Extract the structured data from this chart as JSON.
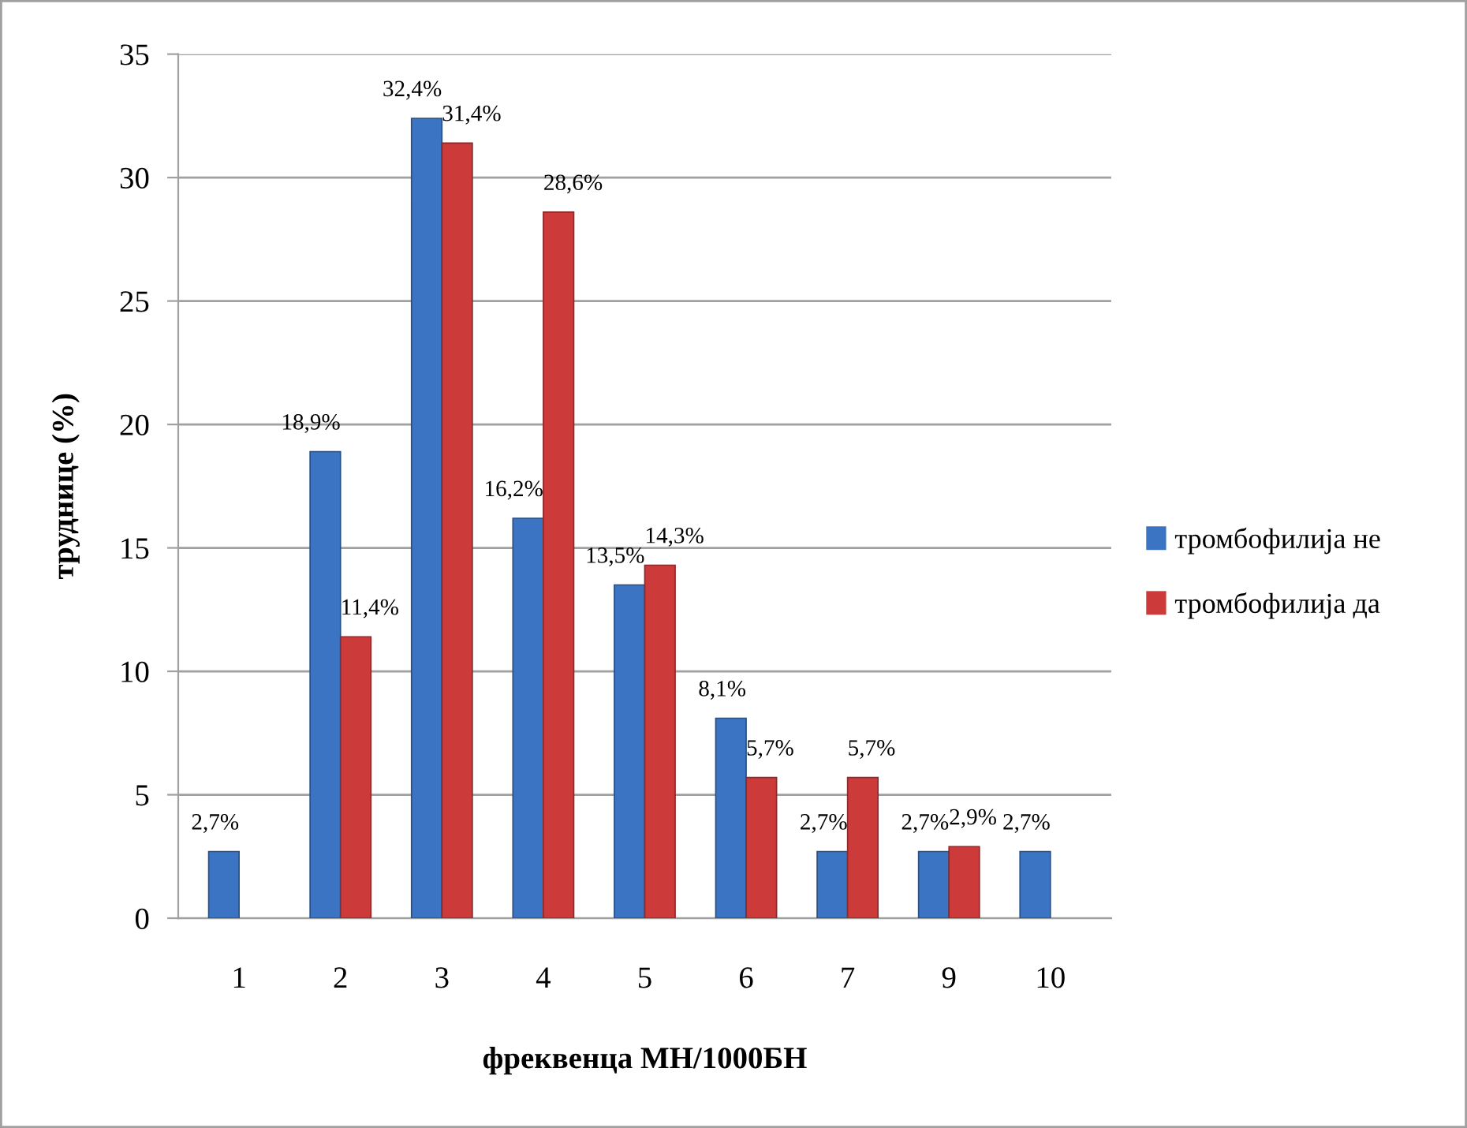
{
  "chart_data": {
    "type": "bar",
    "xlabel": "фреквенца МН/1000БН",
    "ylabel": "труднице (%)",
    "categories": [
      "1",
      "2",
      "3",
      "4",
      "5",
      "6",
      "7",
      "9",
      "10"
    ],
    "series": [
      {
        "name": "тромбофилија не",
        "color": "#3b74c2",
        "values": [
          2.7,
          18.9,
          32.4,
          16.2,
          13.5,
          8.1,
          2.7,
          2.7,
          2.7
        ],
        "value_labels": [
          "2,7%",
          "18,9%",
          "32,4%",
          "16,2%",
          "13,5%",
          "8,1%",
          "2,7%",
          "2,7%",
          "2,7%"
        ]
      },
      {
        "name": "тромбофилија да",
        "color": "#cc3a3a",
        "values": [
          null,
          11.4,
          31.4,
          28.6,
          14.3,
          5.7,
          5.7,
          2.9,
          null
        ],
        "value_labels": [
          null,
          "11,4%",
          "31,4%",
          "28,6%",
          "14,3%",
          "5,7%",
          "5,7%",
          "2,9%",
          null
        ]
      }
    ],
    "ylim": [
      0,
      35
    ],
    "yticks": [
      0,
      5,
      10,
      15,
      20,
      25,
      30,
      35
    ],
    "grid": "y",
    "legend": "right"
  }
}
